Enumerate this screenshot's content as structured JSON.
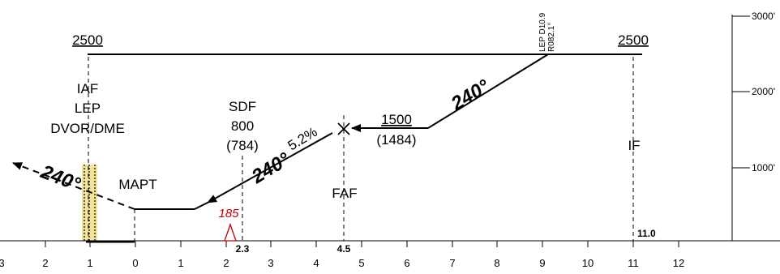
{
  "descent_gradient": "5.2%",
  "fixes": {
    "iaf": {
      "line1": "IAF",
      "line2": "LEP",
      "line3": "DVOR/DME"
    },
    "sdf": {
      "line1": "SDF",
      "line2": "800",
      "line3": "(784)"
    },
    "faf": {
      "label": "FAF"
    },
    "if": {
      "label": "IF"
    },
    "mapt": {
      "label": "MAPT"
    },
    "lep_fix": {
      "line1": "LEP D10.9",
      "line2": "R082.1°"
    }
  },
  "altitudes": {
    "left_2500": "2500",
    "right_2500": "2500",
    "faf_alt": "1500",
    "faf_height": "(1484)"
  },
  "headings": {
    "outbound": "240°",
    "final": "240°",
    "missed": "240°"
  },
  "obstacle": {
    "label": "185"
  },
  "distance_marks": {
    "sdf": "2.3",
    "faf": "4.5",
    "if": "11.0"
  },
  "axis_ticks": [
    "3",
    "2",
    "1",
    "0",
    "1",
    "2",
    "3",
    "4",
    "5",
    "6",
    "7",
    "8",
    "9",
    "10",
    "11",
    "12"
  ],
  "alt_scale": [
    "3000'",
    "2000'",
    "1000'"
  ],
  "colors": {
    "line": "#000000",
    "obstacle": "#c00000",
    "missed_area": "#f3e29a"
  }
}
